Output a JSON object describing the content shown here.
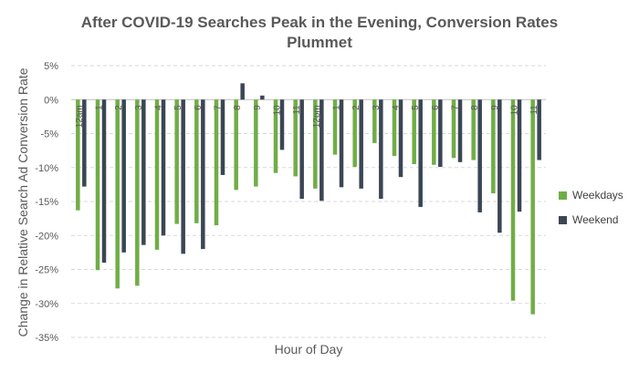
{
  "chart_data": {
    "type": "bar",
    "title": "After COVID-19 Searches Peak in the Evening, Conversion Rates Plummet",
    "title_lines": [
      "After COVID-19 Searches Peak in the Evening, Conversion Rates",
      "Plummet"
    ],
    "xlabel": "Hour of Day",
    "ylabel": "Change in Relative Search Ad Conversion Rate",
    "ylim": [
      -35,
      5
    ],
    "yticks": [
      5,
      0,
      -5,
      -10,
      -15,
      -20,
      -25,
      -30,
      -35
    ],
    "ytick_labels": [
      "5%",
      "0%",
      "-5%",
      "-10%",
      "-15%",
      "-20%",
      "-25%",
      "-30%",
      "-35%"
    ],
    "grid": true,
    "legend_position": "right",
    "categories": [
      "12am",
      "1",
      "2",
      "3",
      "4",
      "5",
      "6",
      "7",
      "8",
      "9",
      "10",
      "11",
      "12pm",
      "1",
      "2",
      "3",
      "4",
      "5",
      "6",
      "7",
      "8",
      "9",
      "10",
      "11"
    ],
    "series": [
      {
        "name": "Weekdays",
        "color": "#70ad47",
        "values": [
          -16.3,
          -25.1,
          -27.8,
          -27.4,
          -22.1,
          -18.3,
          -18.2,
          -18.5,
          -13.3,
          -12.8,
          -10.8,
          -11.3,
          -13.1,
          -8.1,
          -9.9,
          -6.4,
          -8.3,
          -9.5,
          -9.6,
          -8.6,
          -8.9,
          -13.8,
          -29.6,
          -31.6
        ]
      },
      {
        "name": "Weekend",
        "color": "#3b4654",
        "values": [
          -12.8,
          -24.0,
          -22.5,
          -21.4,
          -20.0,
          -22.7,
          -22.0,
          -11.1,
          2.4,
          0.6,
          -7.4,
          -14.6,
          -14.9,
          -12.9,
          -13.1,
          -14.6,
          -11.4,
          -15.8,
          -9.9,
          -9.2,
          -16.6,
          -19.6,
          -16.5,
          -8.9
        ]
      }
    ]
  }
}
